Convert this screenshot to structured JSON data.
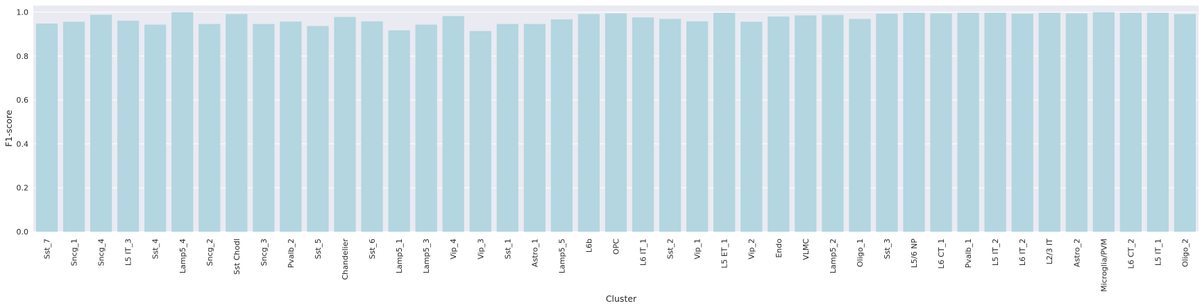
{
  "chart_data": {
    "type": "bar",
    "xlabel": "Cluster",
    "ylabel": "F1-score",
    "ylim": [
      0,
      1.03
    ],
    "yticks": [
      "0.0",
      "0.2",
      "0.4",
      "0.6",
      "0.8",
      "1.0"
    ],
    "grid": true,
    "colors": {
      "bar": "#b3d6e0",
      "plot_bg": "#eaeaf2",
      "grid": "#ffffff",
      "text": "#262626"
    },
    "categories": [
      "Sst_7",
      "Sncg_1",
      "Sncg_4",
      "L5 IT_3",
      "Sst_4",
      "Lamp5_4",
      "Sncg_2",
      "Sst Chodl",
      "Sncg_3",
      "Pvalb_2",
      "Sst_5",
      "Chandelier",
      "Sst_6",
      "Lamp5_1",
      "Lamp5_3",
      "Vip_4",
      "Vip_3",
      "Sst_1",
      "Astro_1",
      "Lamp5_5",
      "L6b",
      "OPC",
      "L6 IT_1",
      "Sst_2",
      "Vip_1",
      "L5 ET_1",
      "Vip_2",
      "Endo",
      "VLMC",
      "Lamp5_2",
      "Oligo_1",
      "Sst_3",
      "L5/6 NP",
      "L6 CT_1",
      "Pvalb_1",
      "L5 IT_2",
      "L6 IT_2",
      "L2/3 IT",
      "Astro_2",
      "Microglia/PVM",
      "L6 CT_2",
      "L5 IT_1",
      "Oligo_2"
    ],
    "values": [
      0.948,
      0.956,
      0.988,
      0.961,
      0.943,
      1.0,
      0.946,
      0.991,
      0.946,
      0.957,
      0.937,
      0.978,
      0.958,
      0.917,
      0.943,
      0.982,
      0.914,
      0.946,
      0.946,
      0.967,
      0.991,
      0.994,
      0.976,
      0.969,
      0.958,
      0.997,
      0.956,
      0.98,
      0.985,
      0.987,
      0.969,
      0.993,
      0.997,
      0.994,
      0.997,
      0.997,
      0.993,
      0.997,
      0.994,
      1.0,
      0.997,
      0.997,
      0.991
    ]
  }
}
